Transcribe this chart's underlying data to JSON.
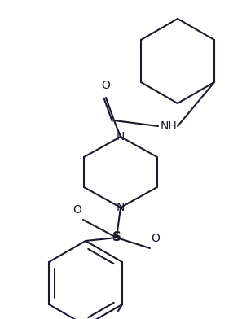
{
  "background_color": "#ffffff",
  "line_color": "#1a1a2e",
  "line_width": 1.5,
  "figsize": [
    2.97,
    3.92
  ],
  "dpi": 100,
  "xlim": [
    0,
    297
  ],
  "ylim": [
    0,
    392
  ]
}
